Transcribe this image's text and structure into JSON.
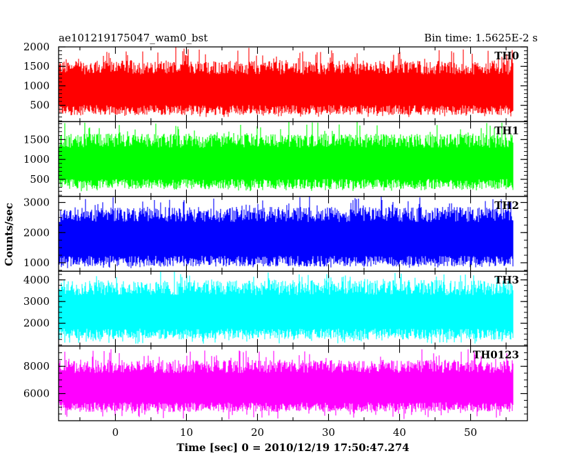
{
  "chart_data": {
    "type": "line",
    "title_left": "ae101219175047_wam0_bst",
    "title_right": "Bin time: 1.5625E-2 s",
    "xlabel": "Time [sec] 0 = 2010/12/19 17:50:47.274",
    "ylabel": "Counts/sec",
    "xlim": [
      -8,
      58
    ],
    "x_range_data": [
      -8,
      56
    ],
    "x_ticks": [
      0,
      10,
      20,
      30,
      40,
      50
    ],
    "x_tick_labels": [
      "0",
      "10",
      "20",
      "30",
      "40",
      "50"
    ],
    "grid": false,
    "panels": [
      {
        "name": "TH0",
        "color": "#ff0000",
        "ylim": [
          80,
          2000
        ],
        "y_ticks": [
          500,
          1000,
          1500,
          2000
        ],
        "y_tick_labels": [
          "500",
          "1000",
          "1500",
          "2000"
        ],
        "typical_low": 380,
        "typical_high": 1400,
        "min": 200,
        "max": 2000
      },
      {
        "name": "TH1",
        "color": "#00ff00",
        "ylim": [
          70,
          1950
        ],
        "y_ticks": [
          500,
          1000,
          1500
        ],
        "y_tick_labels": [
          "500",
          "1000",
          "1500"
        ],
        "typical_low": 380,
        "typical_high": 1400,
        "min": 200,
        "max": 1950
      },
      {
        "name": "TH2",
        "color": "#0000ff",
        "ylim": [
          720,
          3200
        ],
        "y_ticks": [
          1000,
          2000,
          3000
        ],
        "y_tick_labels": [
          "1000",
          "2000",
          "3000"
        ],
        "typical_low": 1050,
        "typical_high": 2500,
        "min": 820,
        "max": 3200
      },
      {
        "name": "TH3",
        "color": "#00ffff",
        "ylim": [
          950,
          4400
        ],
        "y_ticks": [
          2000,
          3000,
          4000
        ],
        "y_tick_labels": [
          "2000",
          "3000",
          "4000"
        ],
        "typical_low": 1500,
        "typical_high": 3500,
        "min": 1050,
        "max": 4400
      },
      {
        "name": "TH0123",
        "color": "#ff00ff",
        "ylim": [
          4000,
          9500
        ],
        "y_ticks": [
          6000,
          8000
        ],
        "y_tick_labels": [
          "6000",
          "8000"
        ],
        "typical_low": 5000,
        "typical_high": 7800,
        "min": 4100,
        "max": 9300
      }
    ]
  }
}
